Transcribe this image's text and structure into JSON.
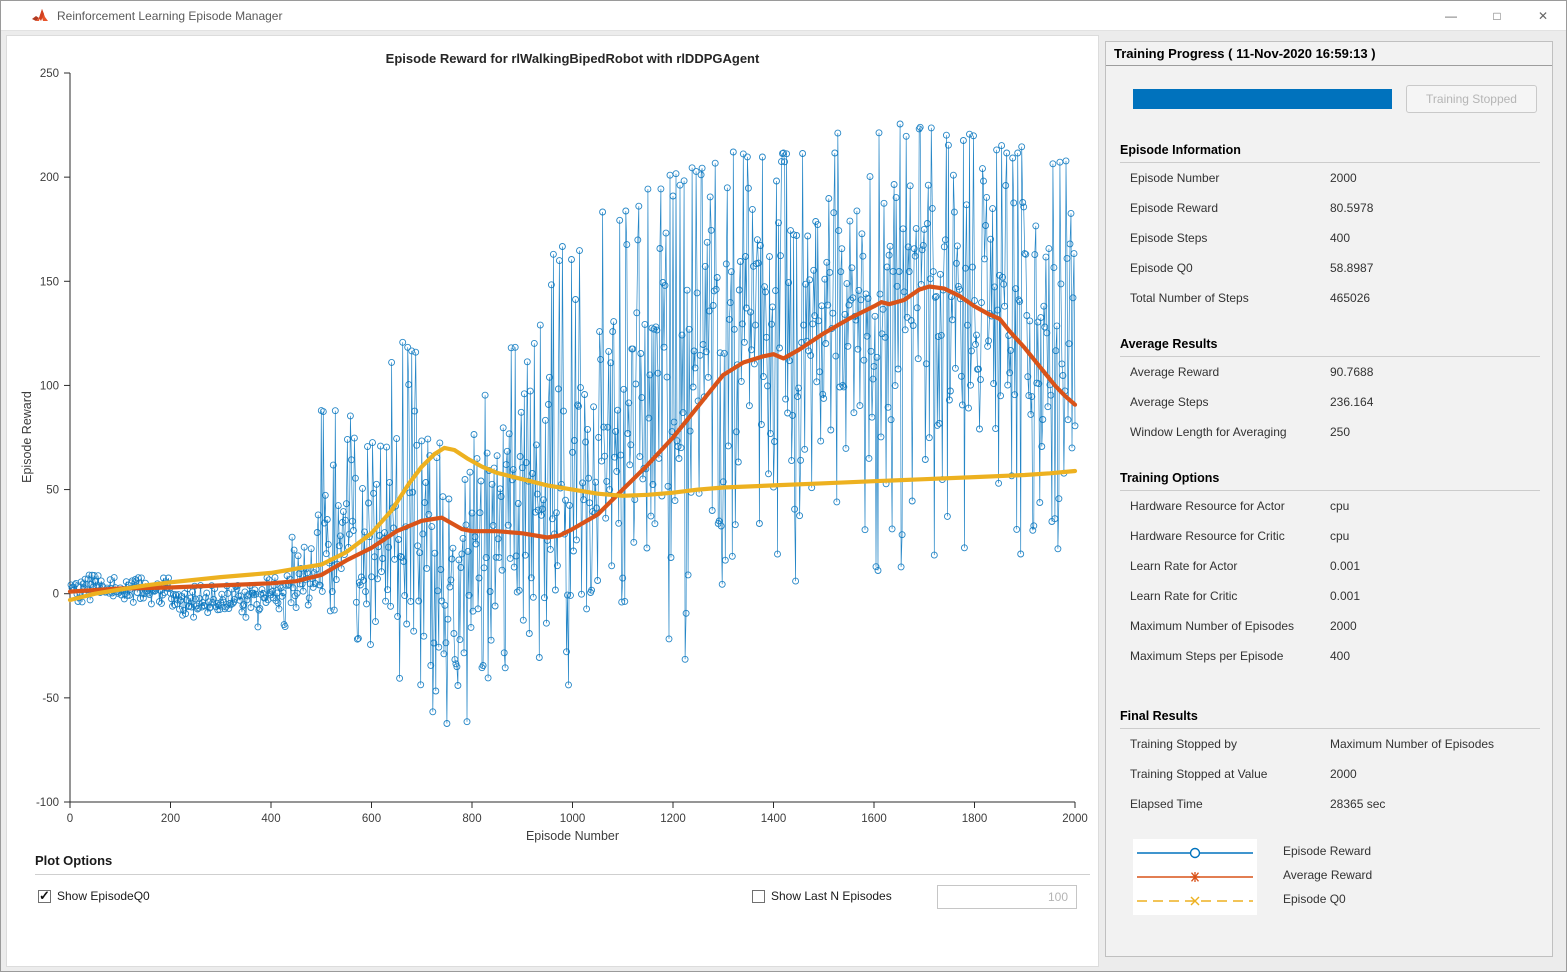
{
  "window": {
    "title": "Reinforcement Learning Episode Manager",
    "icon": "matlab-logo",
    "controls": {
      "minimize": "—",
      "maximize": "□",
      "close": "✕"
    }
  },
  "panel": {
    "header": "Training Progress ( 11-Nov-2020 16:59:13 )",
    "progress": {
      "percent": 100,
      "color": "#0072BD"
    },
    "stop_button": "Training Stopped",
    "sections": [
      {
        "title": "Episode Information",
        "rows": [
          [
            "Episode Number",
            "2000"
          ],
          [
            "Episode Reward",
            "80.5978"
          ],
          [
            "Episode Steps",
            "400"
          ],
          [
            "Episode Q0",
            "58.8987"
          ],
          [
            "Total Number of Steps",
            "465026"
          ]
        ]
      },
      {
        "title": "Average Results",
        "rows": [
          [
            "Average Reward",
            "90.7688"
          ],
          [
            "Average Steps",
            "236.164"
          ],
          [
            "Window Length for Averaging",
            "250"
          ]
        ]
      },
      {
        "title": "Training Options",
        "rows": [
          [
            "Hardware Resource for Actor",
            "cpu"
          ],
          [
            "Hardware Resource for Critic",
            "cpu"
          ],
          [
            "Learn Rate for Actor",
            "0.001"
          ],
          [
            "Learn Rate for Critic",
            "0.001"
          ],
          [
            "Maximum Number of Episodes",
            "2000"
          ],
          [
            "Maximum Steps per Episode",
            "400"
          ]
        ]
      },
      {
        "title": "Final Results",
        "rows": [
          [
            "Training Stopped by",
            "Maximum Number of Episodes"
          ],
          [
            "Training Stopped at Value",
            "2000"
          ],
          [
            "Elapsed Time",
            "28365 sec"
          ]
        ]
      }
    ],
    "legend": [
      {
        "label": "Episode Reward",
        "color": "#0072BD",
        "marker": "circle",
        "dash": "solid"
      },
      {
        "label": "Average Reward",
        "color": "#D95319",
        "marker": "asterisk",
        "dash": "solid"
      },
      {
        "label": "Episode Q0",
        "color": "#EDB120",
        "marker": "x",
        "dash": "dashed"
      }
    ]
  },
  "plot_options": {
    "title": "Plot Options",
    "show_q0": {
      "label": "Show EpisodeQ0",
      "checked": true
    },
    "show_last_n": {
      "label": "Show Last N Episodes",
      "checked": false
    },
    "n_value": "100"
  },
  "chart_data": {
    "type": "line",
    "title": "Episode Reward for rlWalkingBipedRobot with rlDDPGAgent",
    "xlabel": "Episode Number",
    "ylabel": "Episode Reward",
    "xlim": [
      0,
      2000
    ],
    "ylim": [
      -100,
      250
    ],
    "xticks": [
      0,
      200,
      400,
      600,
      800,
      1000,
      1200,
      1400,
      1600,
      1800,
      2000
    ],
    "yticks": [
      -100,
      -50,
      0,
      50,
      100,
      150,
      200,
      250
    ],
    "grid": false,
    "series": [
      {
        "name": "Episode Reward",
        "color": "#0072BD",
        "marker": "circle",
        "style": "noisy-line",
        "final_value": 80.5978,
        "envelope_format": "[episode_from, value_min, value_max, value_typical]",
        "envelope": [
          [
            0,
            -4,
            9,
            4
          ],
          [
            60,
            -5,
            8,
            2
          ],
          [
            200,
            -12,
            4,
            -4
          ],
          [
            360,
            -16,
            8,
            -2
          ],
          [
            430,
            -8,
            28,
            5
          ],
          [
            490,
            -12,
            92,
            25
          ],
          [
            560,
            -25,
            75,
            12
          ],
          [
            640,
            -45,
            122,
            28
          ],
          [
            700,
            -65,
            75,
            15
          ],
          [
            760,
            -93,
            62,
            10
          ],
          [
            800,
            -42,
            98,
            28
          ],
          [
            870,
            -38,
            122,
            35
          ],
          [
            930,
            -45,
            167,
            45
          ],
          [
            1000,
            -27,
            172,
            60
          ],
          [
            1060,
            -15,
            187,
            80
          ],
          [
            1120,
            -8,
            197,
            100
          ],
          [
            1180,
            -33,
            202,
            105
          ],
          [
            1230,
            3,
            207,
            118
          ],
          [
            1300,
            8,
            216,
            128
          ],
          [
            1400,
            5,
            212,
            128
          ],
          [
            1500,
            10,
            222,
            138
          ],
          [
            1620,
            12,
            226,
            148
          ],
          [
            1720,
            10,
            221,
            140
          ],
          [
            1800,
            6,
            216,
            130
          ],
          [
            1900,
            8,
            213,
            125
          ],
          [
            2000,
            8,
            213,
            125
          ]
        ]
      },
      {
        "name": "Average Reward",
        "color": "#D95319",
        "marker": "asterisk",
        "style": "thick-line",
        "points": [
          [
            0,
            1
          ],
          [
            100,
            2.5
          ],
          [
            200,
            3
          ],
          [
            300,
            4
          ],
          [
            400,
            5
          ],
          [
            450,
            6
          ],
          [
            500,
            9
          ],
          [
            550,
            16
          ],
          [
            600,
            22
          ],
          [
            650,
            30
          ],
          [
            700,
            35
          ],
          [
            740,
            36.5
          ],
          [
            780,
            31
          ],
          [
            800,
            30
          ],
          [
            850,
            30
          ],
          [
            900,
            29
          ],
          [
            950,
            27
          ],
          [
            975,
            28
          ],
          [
            1000,
            31
          ],
          [
            1050,
            38
          ],
          [
            1100,
            50
          ],
          [
            1150,
            62
          ],
          [
            1200,
            75
          ],
          [
            1250,
            90
          ],
          [
            1300,
            105
          ],
          [
            1340,
            111
          ],
          [
            1380,
            114
          ],
          [
            1400,
            115
          ],
          [
            1420,
            113
          ],
          [
            1450,
            117
          ],
          [
            1500,
            125
          ],
          [
            1550,
            132
          ],
          [
            1600,
            138
          ],
          [
            1615,
            140
          ],
          [
            1630,
            139
          ],
          [
            1660,
            141
          ],
          [
            1690,
            146
          ],
          [
            1710,
            147.5
          ],
          [
            1740,
            146.5
          ],
          [
            1770,
            143
          ],
          [
            1800,
            138
          ],
          [
            1830,
            134
          ],
          [
            1850,
            132
          ],
          [
            1870,
            126
          ],
          [
            1900,
            118
          ],
          [
            1930,
            109
          ],
          [
            1960,
            100
          ],
          [
            1980,
            95
          ],
          [
            2000,
            90.7688
          ]
        ]
      },
      {
        "name": "Episode Q0",
        "color": "#EDB120",
        "marker": "x",
        "style": "thick-line",
        "points": [
          [
            0,
            -3
          ],
          [
            50,
            0
          ],
          [
            100,
            2
          ],
          [
            150,
            4
          ],
          [
            200,
            5.5
          ],
          [
            300,
            8
          ],
          [
            400,
            10
          ],
          [
            450,
            12
          ],
          [
            500,
            14
          ],
          [
            550,
            20
          ],
          [
            600,
            29
          ],
          [
            640,
            40
          ],
          [
            675,
            53
          ],
          [
            700,
            61
          ],
          [
            725,
            67
          ],
          [
            745,
            70
          ],
          [
            765,
            69
          ],
          [
            790,
            65
          ],
          [
            820,
            61
          ],
          [
            850,
            58
          ],
          [
            900,
            55
          ],
          [
            950,
            52
          ],
          [
            1000,
            50
          ],
          [
            1050,
            48
          ],
          [
            1100,
            47
          ],
          [
            1150,
            47.5
          ],
          [
            1200,
            48.5
          ],
          [
            1250,
            50
          ],
          [
            1300,
            51
          ],
          [
            1400,
            52
          ],
          [
            1500,
            53
          ],
          [
            1600,
            54
          ],
          [
            1700,
            55
          ],
          [
            1800,
            56
          ],
          [
            1900,
            57
          ],
          [
            1950,
            57.8
          ],
          [
            2000,
            58.8987
          ]
        ]
      }
    ]
  }
}
